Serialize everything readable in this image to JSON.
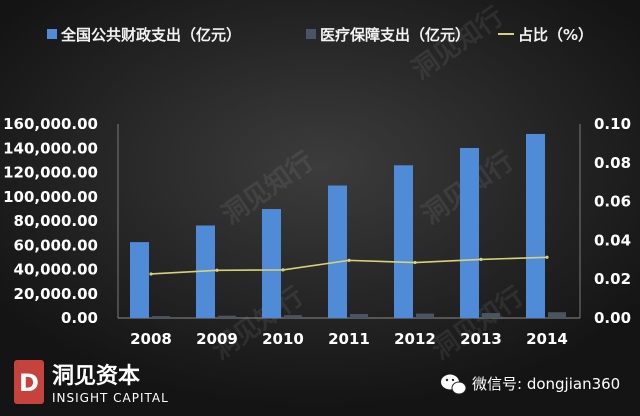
{
  "chart_data": {
    "type": "bar",
    "categories": [
      "2008",
      "2009",
      "2010",
      "2011",
      "2012",
      "2013",
      "2014"
    ],
    "series": [
      {
        "name": "全国公共财政支出（亿元）",
        "kind": "bar",
        "axis": "left",
        "color": "#4f8bd6",
        "values": [
          62593,
          76300,
          89874,
          109248,
          125953,
          140212,
          151786
        ]
      },
      {
        "name": "医疗保障支出（亿元）",
        "kind": "bar",
        "axis": "left",
        "color": "#4a5563",
        "values": [
          1577,
          1900,
          2332,
          3294,
          3664,
          4097,
          4759
        ]
      },
      {
        "name": "占比（%）",
        "kind": "line",
        "axis": "right",
        "color": "#d7d27a",
        "values": [
          0.0227,
          0.0246,
          0.0248,
          0.0297,
          0.0286,
          0.0302,
          0.0313
        ]
      }
    ],
    "y_left": {
      "ylim": [
        0,
        160000
      ],
      "ticks": [
        "0.00",
        "20,000.00",
        "40,000.00",
        "60,000.00",
        "80,000.00",
        "100,000.00",
        "120,000.00",
        "140,000.00",
        "160,000.00"
      ]
    },
    "y_right": {
      "ylim": [
        0,
        0.1
      ],
      "ticks": [
        "0.00",
        "0.02",
        "0.04",
        "0.06",
        "0.08",
        "0.10"
      ]
    },
    "legend_position": "top",
    "grid": false
  },
  "legend": {
    "total": "全国公共财政支出（亿元）",
    "medical": "医疗保障支出（亿元）",
    "ratio": "占比（%）"
  },
  "branding": {
    "watermark": "洞见知行",
    "name_cn": "洞见资本",
    "name_en": "INSIGHT CAPITAL",
    "logo_letter": "D",
    "wechat": "微信号: dongjian360",
    "wechat_icon": "wechat-icon"
  }
}
